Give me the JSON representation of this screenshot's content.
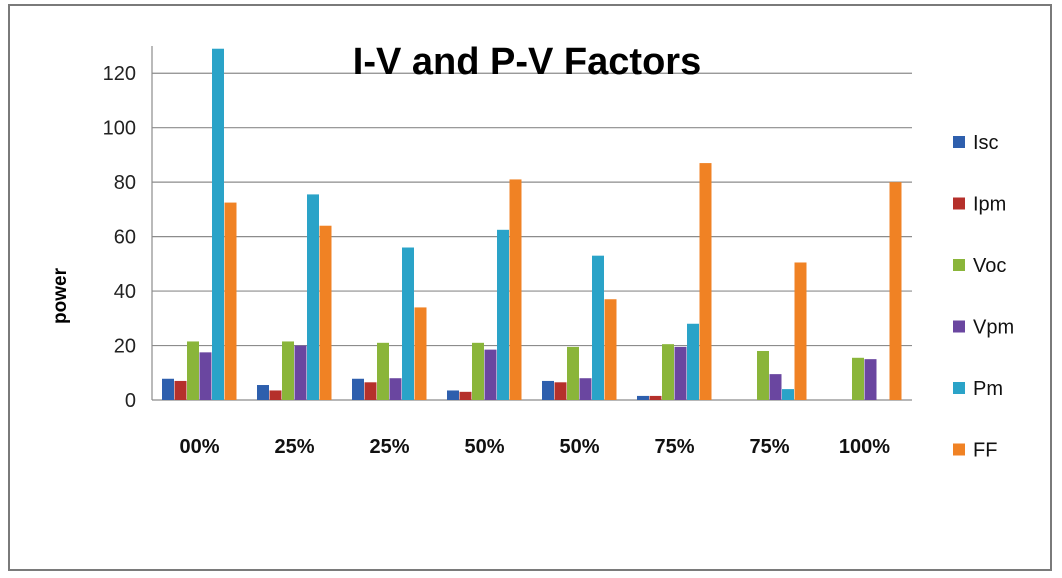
{
  "chart_data": {
    "type": "bar",
    "title": "I-V and P-V Factors",
    "xlabel": "",
    "ylabel": "power",
    "ylim": [
      0,
      130
    ],
    "yticks": [
      0,
      20,
      40,
      60,
      80,
      100,
      120
    ],
    "grid": true,
    "legend_position": "right",
    "categories": [
      "00%",
      "25%",
      "25%",
      "50%",
      "50%",
      "75%",
      "75%",
      "100%"
    ],
    "series": [
      {
        "name": "Isc",
        "color": "#2e5fad",
        "values": [
          7.8,
          5.5,
          7.8,
          3.5,
          7.0,
          1.5,
          0,
          0
        ]
      },
      {
        "name": "Ipm",
        "color": "#b5302b",
        "values": [
          7.0,
          3.5,
          6.5,
          3.0,
          6.5,
          1.5,
          0,
          0
        ]
      },
      {
        "name": "Voc",
        "color": "#8ab53a",
        "values": [
          21.5,
          21.5,
          21.0,
          21.0,
          19.5,
          20.5,
          18.0,
          15.5
        ]
      },
      {
        "name": "Vpm",
        "color": "#6a46a0",
        "values": [
          17.5,
          20.0,
          8.0,
          18.5,
          8.0,
          19.5,
          9.5,
          15.0
        ]
      },
      {
        "name": "Pm",
        "color": "#2aa3c8",
        "values": [
          129,
          75.5,
          56,
          62.5,
          53,
          28,
          4,
          0
        ]
      },
      {
        "name": "FF",
        "color": "#f08224",
        "values": [
          72.5,
          64,
          34,
          81,
          37,
          87,
          50.5,
          80
        ]
      }
    ]
  }
}
